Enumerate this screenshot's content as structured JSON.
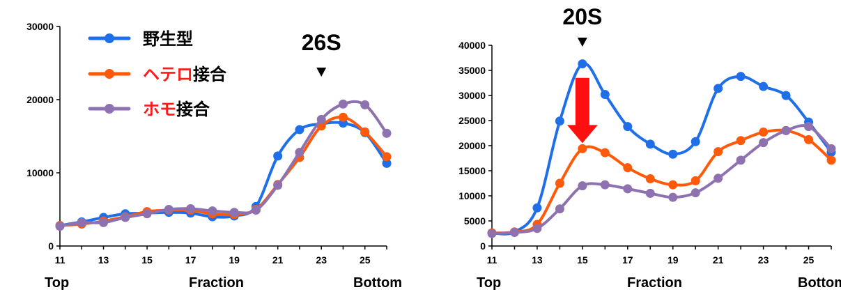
{
  "colors": {
    "wild_type": "#1f6fe8",
    "hetero": "#ff5a0a",
    "homo": "#8e72b0",
    "red_text": "#ff1a1a",
    "arrow": "#ff1010",
    "axis": "#000000"
  },
  "legend": {
    "items": [
      {
        "key": "wild_type",
        "parts": [
          {
            "text": "野生型",
            "color": "#000000"
          }
        ]
      },
      {
        "key": "hetero",
        "parts": [
          {
            "text": "ヘテロ",
            "color": "#ff1a1a"
          },
          {
            "text": "接合",
            "color": "#000000"
          }
        ]
      },
      {
        "key": "homo",
        "parts": [
          {
            "text": "ホモ",
            "color": "#ff1a1a"
          },
          {
            "text": "接合",
            "color": "#000000"
          }
        ]
      }
    ]
  },
  "chart_data": [
    {
      "type": "line",
      "x_axis": {
        "min": 11,
        "max": 26,
        "tick_labels": [
          "11",
          "13",
          "15",
          "17",
          "19",
          "21",
          "23",
          "25"
        ],
        "left_label": "Top",
        "center_label": "Fraction",
        "right_label": "Bottom"
      },
      "y_axis": {
        "min": 0,
        "max": 30000,
        "ticks": [
          0,
          10000,
          20000,
          30000
        ],
        "tick_labels": [
          "0",
          "10000",
          "20000",
          "30000"
        ]
      },
      "annotation": {
        "label": "26S",
        "x": 23,
        "marker": "▼"
      },
      "x": [
        11,
        12,
        13,
        14,
        15,
        16,
        17,
        18,
        19,
        20,
        21,
        22,
        23,
        24,
        25,
        26
      ],
      "series": [
        {
          "key": "wild_type",
          "values": [
            2800,
            3300,
            3900,
            4400,
            4500,
            4600,
            4500,
            4000,
            4100,
            5400,
            12300,
            15900,
            16700,
            16800,
            15500,
            11300
          ]
        },
        {
          "key": "hetero",
          "values": [
            2800,
            3000,
            3400,
            4000,
            4700,
            4900,
            4900,
            4400,
            4300,
            5000,
            8400,
            12100,
            16400,
            17600,
            15600,
            12200
          ]
        },
        {
          "key": "homo",
          "values": [
            2700,
            3200,
            3200,
            3900,
            4400,
            5000,
            5100,
            4800,
            4600,
            4900,
            8300,
            12800,
            17300,
            19400,
            19300,
            15400
          ]
        }
      ]
    },
    {
      "type": "line",
      "x_axis": {
        "min": 11,
        "max": 26,
        "tick_labels": [
          "11",
          "13",
          "15",
          "17",
          "19",
          "21",
          "23",
          "25"
        ],
        "left_label": "Top",
        "center_label": "Fraction",
        "right_label": "Bottom"
      },
      "y_axis": {
        "min": 0,
        "max": 40000,
        "ticks": [
          0,
          5000,
          10000,
          15000,
          20000,
          25000,
          30000,
          35000,
          40000
        ],
        "tick_labels": [
          "0",
          "5000",
          "10000",
          "15000",
          "20000",
          "25000",
          "30000",
          "35000",
          "40000"
        ]
      },
      "annotation": {
        "label": "20S",
        "x": 15,
        "marker": "▼"
      },
      "arrow": {
        "x": 15,
        "from": 33500,
        "to": 20500
      },
      "x": [
        11,
        12,
        13,
        14,
        15,
        16,
        17,
        18,
        19,
        20,
        21,
        22,
        23,
        24,
        25,
        26
      ],
      "series": [
        {
          "key": "wild_type",
          "values": [
            2600,
            2800,
            7600,
            24900,
            36300,
            30200,
            23800,
            20300,
            18300,
            20800,
            31400,
            33800,
            31800,
            30000,
            24700,
            18700
          ]
        },
        {
          "key": "hetero",
          "values": [
            2600,
            2800,
            4300,
            12500,
            19400,
            18600,
            15600,
            13400,
            12200,
            13000,
            18800,
            21000,
            22700,
            23000,
            21200,
            17100
          ]
        },
        {
          "key": "homo",
          "values": [
            2500,
            2700,
            3500,
            7400,
            12000,
            12200,
            11400,
            10500,
            9700,
            10600,
            13500,
            17100,
            20600,
            23000,
            23800,
            19400
          ]
        }
      ]
    }
  ]
}
